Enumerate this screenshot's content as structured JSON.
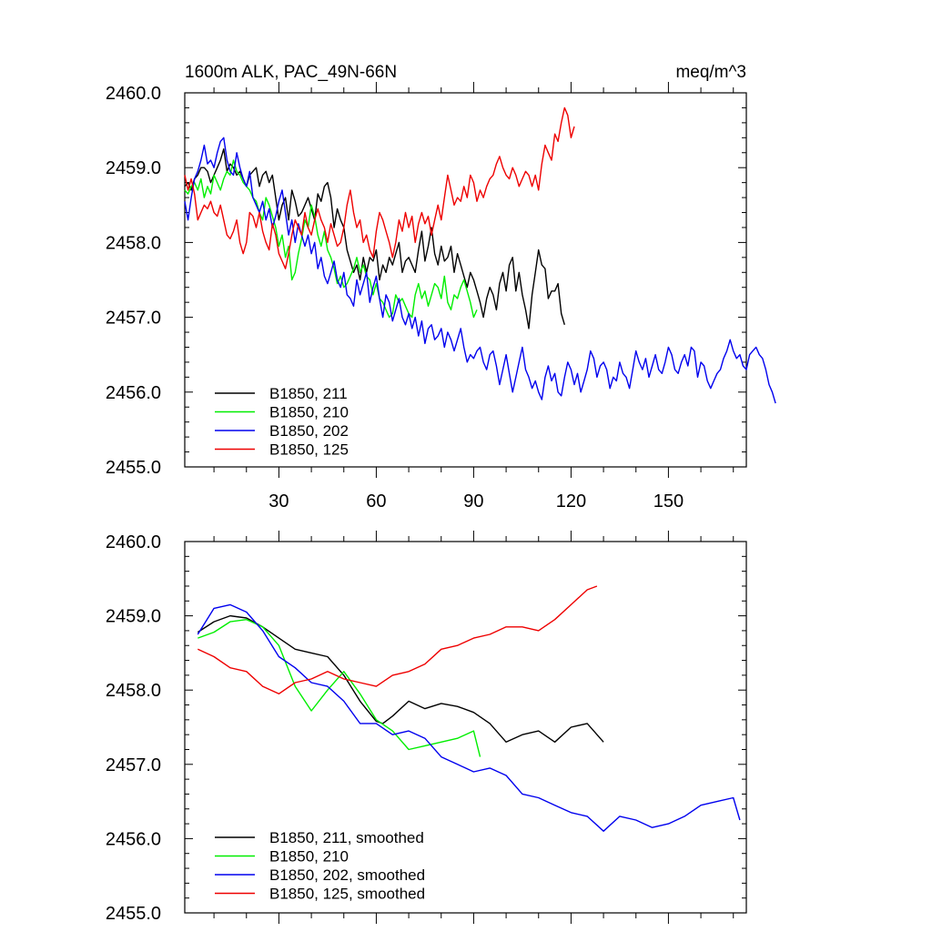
{
  "chart_data": [
    {
      "type": "line",
      "title_left": "1600m ALK, PAC_49N-66N",
      "title_right": "meq/m^3",
      "xlabel": "",
      "ylabel": "",
      "xlim": [
        1,
        174
      ],
      "ylim": [
        2455.0,
        2460.0
      ],
      "x_ticks": [
        30,
        60,
        90,
        120,
        150
      ],
      "x_tick_labels": [
        "30",
        "60",
        "90",
        "120",
        "150"
      ],
      "y_ticks": [
        2455.0,
        2456.0,
        2457.0,
        2458.0,
        2459.0,
        2460.0
      ],
      "y_tick_labels": [
        "2455.0",
        "2456.0",
        "2457.0",
        "2458.0",
        "2459.0",
        "2460.0"
      ],
      "legend_position": "bottom-left",
      "series": [
        {
          "name": "B1850, 211",
          "color": "#000000",
          "x_start": 1,
          "values": [
            2458.75,
            2458.8,
            2458.7,
            2458.85,
            2458.9,
            2459.0,
            2459.0,
            2458.95,
            2458.8,
            2458.9,
            2459.0,
            2459.1,
            2459.25,
            2458.95,
            2459.05,
            2459.0,
            2458.9,
            2458.95,
            2458.85,
            2458.75,
            2458.9,
            2458.95,
            2459.0,
            2458.75,
            2458.9,
            2458.95,
            2458.8,
            2458.9,
            2458.6,
            2458.3,
            2458.5,
            2458.6,
            2458.3,
            2458.7,
            2458.55,
            2458.35,
            2458.4,
            2458.5,
            2458.6,
            2458.45,
            2458.3,
            2458.65,
            2458.55,
            2458.75,
            2458.8,
            2458.6,
            2458.2,
            2458.45,
            2458.3,
            2458.2,
            2457.9,
            2457.75,
            2457.6,
            2457.7,
            2457.5,
            2457.8,
            2457.6,
            2457.8,
            2457.75,
            2457.9,
            2457.5,
            2457.7,
            2457.6,
            2457.8,
            2457.7,
            2457.85,
            2458.0,
            2457.6,
            2457.75,
            2457.8,
            2457.7,
            2457.6,
            2457.9,
            2458.15,
            2457.75,
            2457.95,
            2458.2,
            2457.85,
            2457.7,
            2457.95,
            2457.75,
            2457.8,
            2457.95,
            2457.6,
            2457.85,
            2457.7,
            2457.55,
            2457.4,
            2457.6,
            2457.5,
            2457.35,
            2457.2,
            2457.0,
            2457.25,
            2457.4,
            2457.3,
            2457.1,
            2457.45,
            2457.6,
            2457.35,
            2457.7,
            2457.8,
            2457.35,
            2457.6,
            2457.3,
            2457.1,
            2456.85,
            2457.3,
            2457.6,
            2457.9,
            2457.7,
            2457.65,
            2457.25,
            2457.35,
            2457.35,
            2457.45,
            2457.05,
            2456.9
          ]
        },
        {
          "name": "B1850, 210",
          "color": "#00ee00",
          "x_start": 1,
          "values": [
            2458.7,
            2458.65,
            2458.75,
            2458.8,
            2458.7,
            2458.85,
            2458.6,
            2458.75,
            2458.65,
            2458.9,
            2458.8,
            2458.7,
            2458.85,
            2458.95,
            2458.9,
            2459.1,
            2458.95,
            2458.9,
            2458.8,
            2458.75,
            2458.7,
            2458.6,
            2458.55,
            2458.4,
            2458.3,
            2458.6,
            2458.5,
            2458.35,
            2458.2,
            2457.95,
            2458.1,
            2457.8,
            2457.95,
            2457.5,
            2457.6,
            2457.85,
            2458.05,
            2458.3,
            2458.2,
            2458.5,
            2458.35,
            2458.1,
            2457.95,
            2458.15,
            2457.9,
            2457.8,
            2457.65,
            2457.45,
            2457.55,
            2457.4,
            2457.45,
            2457.55,
            2457.65,
            2457.8,
            2457.6,
            2457.7,
            2457.55,
            2457.5,
            2457.3,
            2457.45,
            2457.25,
            2457.2,
            2457.1,
            2457.0,
            2457.05,
            2457.3,
            2457.2,
            2457.25,
            2457.15,
            2457.05,
            2457.0,
            2457.3,
            2457.45,
            2457.25,
            2457.35,
            2457.15,
            2457.3,
            2457.45,
            2457.4,
            2457.25,
            2457.55,
            2457.2,
            2457.1,
            2457.3,
            2457.25,
            2457.4,
            2457.5,
            2457.35,
            2457.2,
            2457.0,
            2457.1
          ]
        },
        {
          "name": "B1850, 202",
          "color": "#0000ee",
          "x_start": 1,
          "values": [
            2458.55,
            2458.3,
            2458.6,
            2458.85,
            2458.95,
            2459.1,
            2459.3,
            2459.05,
            2459.1,
            2459.0,
            2459.2,
            2459.35,
            2459.4,
            2459.1,
            2458.95,
            2458.9,
            2459.2,
            2459.0,
            2458.85,
            2458.75,
            2458.95,
            2458.6,
            2458.5,
            2458.4,
            2458.55,
            2458.3,
            2458.45,
            2458.2,
            2458.35,
            2458.55,
            2458.7,
            2458.4,
            2458.1,
            2458.3,
            2458.0,
            2458.25,
            2458.1,
            2457.95,
            2458.1,
            2457.85,
            2458.0,
            2457.65,
            2457.8,
            2457.55,
            2457.45,
            2457.6,
            2457.75,
            2457.5,
            2457.4,
            2457.6,
            2457.3,
            2457.25,
            2457.15,
            2457.5,
            2457.3,
            2457.45,
            2457.6,
            2457.2,
            2457.4,
            2457.55,
            2457.25,
            2457.0,
            2457.3,
            2457.2,
            2456.95,
            2457.1,
            2457.25,
            2457.0,
            2456.9,
            2457.05,
            2456.85,
            2457.0,
            2456.75,
            2456.95,
            2456.65,
            2456.85,
            2456.9,
            2456.7,
            2456.75,
            2456.85,
            2456.6,
            2456.8,
            2456.7,
            2456.55,
            2456.7,
            2456.85,
            2456.6,
            2456.4,
            2456.5,
            2456.45,
            2456.55,
            2456.6,
            2456.4,
            2456.3,
            2456.5,
            2456.55,
            2456.35,
            2456.1,
            2456.3,
            2456.5,
            2456.25,
            2456.0,
            2456.2,
            2456.4,
            2456.6,
            2456.3,
            2456.2,
            2456.05,
            2456.15,
            2456.0,
            2455.9,
            2456.2,
            2456.35,
            2456.15,
            2456.25,
            2456.0,
            2455.95,
            2456.2,
            2456.4,
            2456.3,
            2456.1,
            2456.25,
            2456.0,
            2456.15,
            2456.3,
            2456.55,
            2456.45,
            2456.2,
            2456.35,
            2456.4,
            2456.3,
            2456.05,
            2456.2,
            2456.15,
            2456.4,
            2456.25,
            2456.2,
            2456.05,
            2456.3,
            2456.55,
            2456.4,
            2456.3,
            2456.45,
            2456.2,
            2456.35,
            2456.5,
            2456.3,
            2456.25,
            2456.4,
            2456.6,
            2456.5,
            2456.3,
            2456.25,
            2456.4,
            2456.5,
            2456.35,
            2456.6,
            2456.55,
            2456.2,
            2456.4,
            2456.35,
            2456.15,
            2456.05,
            2456.15,
            2456.25,
            2456.3,
            2456.45,
            2456.55,
            2456.7,
            2456.55,
            2456.45,
            2456.5,
            2456.35,
            2456.3,
            2456.5,
            2456.55,
            2456.6,
            2456.5,
            2456.45,
            2456.3,
            2456.1,
            2456.0,
            2455.85
          ]
        },
        {
          "name": "B1850, 125",
          "color": "#ee0000",
          "x_start": 1,
          "values": [
            2458.9,
            2458.7,
            2458.85,
            2458.65,
            2458.3,
            2458.4,
            2458.5,
            2458.45,
            2458.55,
            2458.4,
            2458.35,
            2458.5,
            2458.3,
            2458.1,
            2458.05,
            2458.15,
            2458.3,
            2458.0,
            2457.85,
            2458.0,
            2458.4,
            2458.35,
            2458.2,
            2458.4,
            2458.15,
            2458.0,
            2457.9,
            2458.25,
            2458.1,
            2457.85,
            2457.75,
            2457.65,
            2457.85,
            2458.1,
            2458.3,
            2458.2,
            2458.1,
            2458.4,
            2458.2,
            2458.1,
            2458.3,
            2458.45,
            2458.3,
            2458.2,
            2458.0,
            2458.25,
            2458.1,
            2457.95,
            2458.0,
            2458.2,
            2458.5,
            2458.7,
            2458.4,
            2458.2,
            2458.3,
            2458.0,
            2458.1,
            2457.9,
            2457.8,
            2458.15,
            2458.4,
            2458.3,
            2458.15,
            2458.0,
            2457.8,
            2458.0,
            2458.3,
            2458.15,
            2458.4,
            2458.2,
            2458.35,
            2458.0,
            2458.25,
            2458.4,
            2458.25,
            2458.35,
            2458.1,
            2458.3,
            2458.5,
            2458.3,
            2458.6,
            2458.9,
            2458.7,
            2458.5,
            2458.6,
            2458.55,
            2458.75,
            2458.6,
            2458.9,
            2458.8,
            2458.55,
            2458.7,
            2458.6,
            2458.75,
            2458.85,
            2458.9,
            2459.05,
            2459.15,
            2459.0,
            2458.9,
            2458.85,
            2459.0,
            2458.9,
            2458.75,
            2458.85,
            2458.95,
            2458.9,
            2458.75,
            2458.9,
            2458.7,
            2459.05,
            2459.3,
            2459.2,
            2459.1,
            2459.45,
            2459.35,
            2459.6,
            2459.8,
            2459.7,
            2459.4,
            2459.55
          ]
        }
      ]
    },
    {
      "type": "line",
      "title": "",
      "xlabel": "",
      "ylabel": "",
      "xlim": [
        1,
        174
      ],
      "ylim": [
        2455.0,
        2460.0
      ],
      "x_ticks": [
        30,
        60,
        90,
        120,
        150
      ],
      "y_ticks": [
        2455.0,
        2456.0,
        2457.0,
        2458.0,
        2459.0,
        2460.0
      ],
      "y_tick_labels": [
        "2455.0",
        "2456.0",
        "2457.0",
        "2458.0",
        "2459.0",
        "2460.0"
      ],
      "legend_position": "bottom-left",
      "series": [
        {
          "name": "B1850, 211, smoothed",
          "color": "#000000",
          "x": [
            5,
            10,
            15,
            20,
            25,
            30,
            35,
            40,
            45,
            50,
            55,
            60,
            62,
            65,
            70,
            75,
            80,
            85,
            90,
            95,
            100,
            105,
            110,
            115,
            120,
            125,
            130
          ],
          "values": [
            2458.78,
            2458.92,
            2459.0,
            2458.97,
            2458.85,
            2458.7,
            2458.55,
            2458.5,
            2458.45,
            2458.2,
            2457.85,
            2457.58,
            2457.55,
            2457.65,
            2457.85,
            2457.75,
            2457.82,
            2457.78,
            2457.7,
            2457.55,
            2457.3,
            2457.4,
            2457.45,
            2457.3,
            2457.5,
            2457.55,
            2457.3
          ]
        },
        {
          "name": "B1850, 210",
          "color": "#00ee00",
          "x": [
            5,
            10,
            15,
            20,
            25,
            30,
            35,
            40,
            45,
            50,
            55,
            60,
            65,
            70,
            75,
            80,
            85,
            90,
            92
          ],
          "values": [
            2458.7,
            2458.78,
            2458.92,
            2458.95,
            2458.85,
            2458.6,
            2458.05,
            2457.72,
            2458.0,
            2458.25,
            2457.95,
            2457.6,
            2457.45,
            2457.2,
            2457.25,
            2457.3,
            2457.35,
            2457.45,
            2457.1
          ]
        },
        {
          "name": "B1850, 202, smoothed",
          "color": "#0000ee",
          "x": [
            5,
            10,
            15,
            20,
            25,
            30,
            35,
            40,
            45,
            50,
            55,
            60,
            65,
            70,
            75,
            80,
            85,
            90,
            95,
            100,
            105,
            110,
            115,
            120,
            125,
            130,
            135,
            140,
            145,
            150,
            155,
            160,
            165,
            170,
            172
          ],
          "values": [
            2458.75,
            2459.1,
            2459.15,
            2459.05,
            2458.8,
            2458.45,
            2458.3,
            2458.1,
            2458.05,
            2457.85,
            2457.55,
            2457.55,
            2457.4,
            2457.45,
            2457.35,
            2457.1,
            2457.0,
            2456.9,
            2456.95,
            2456.85,
            2456.6,
            2456.55,
            2456.45,
            2456.35,
            2456.3,
            2456.1,
            2456.3,
            2456.25,
            2456.15,
            2456.2,
            2456.3,
            2456.45,
            2456.5,
            2456.55,
            2456.25
          ]
        },
        {
          "name": "B1850, 125, smoothed",
          "color": "#ee0000",
          "x": [
            5,
            10,
            15,
            20,
            25,
            30,
            35,
            40,
            45,
            50,
            55,
            60,
            65,
            70,
            75,
            80,
            85,
            90,
            95,
            100,
            105,
            110,
            115,
            120,
            125,
            128
          ],
          "values": [
            2458.55,
            2458.45,
            2458.3,
            2458.25,
            2458.05,
            2457.95,
            2458.1,
            2458.15,
            2458.25,
            2458.15,
            2458.1,
            2458.05,
            2458.2,
            2458.25,
            2458.35,
            2458.55,
            2458.6,
            2458.7,
            2458.75,
            2458.85,
            2458.85,
            2458.8,
            2458.95,
            2459.15,
            2459.35,
            2459.4
          ]
        }
      ]
    }
  ]
}
